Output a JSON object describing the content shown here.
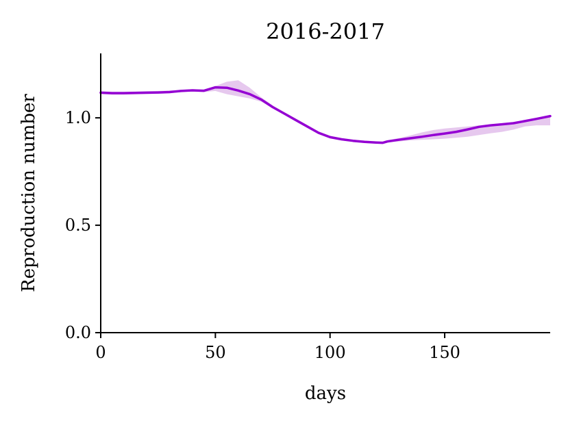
{
  "chart_data": {
    "type": "line",
    "title": "2016-2017",
    "xlabel": "days",
    "ylabel": "Reproduction number",
    "xlim": [
      0,
      196
    ],
    "ylim": [
      0.0,
      1.3
    ],
    "xticks": [
      0,
      50,
      100,
      150
    ],
    "yticks": [
      0.0,
      0.5,
      1.0
    ],
    "xtick_labels": [
      "0",
      "50",
      "100",
      "150"
    ],
    "ytick_labels": [
      "0.0",
      "0.5",
      "1.0"
    ],
    "grid": false,
    "line_color": "#9400d3",
    "band_color": "#e6c8ee",
    "series": [
      {
        "x": [
          0,
          5,
          10,
          15,
          20,
          25,
          30,
          35,
          40,
          45,
          50,
          55,
          60,
          65,
          70,
          75,
          80,
          85,
          90,
          95,
          100,
          105,
          110,
          115,
          120,
          123,
          125,
          130,
          135,
          140,
          145,
          150,
          155,
          160,
          165,
          170,
          175,
          180,
          185,
          190,
          196
        ],
        "y": [
          1.117,
          1.115,
          1.115,
          1.116,
          1.117,
          1.118,
          1.12,
          1.125,
          1.128,
          1.126,
          1.142,
          1.14,
          1.127,
          1.11,
          1.085,
          1.05,
          1.02,
          0.99,
          0.96,
          0.93,
          0.91,
          0.9,
          0.893,
          0.888,
          0.885,
          0.884,
          0.89,
          0.898,
          0.905,
          0.912,
          0.92,
          0.927,
          0.935,
          0.946,
          0.958,
          0.965,
          0.97,
          0.975,
          0.985,
          0.995,
          1.008
        ],
        "lower": [
          1.11,
          1.108,
          1.108,
          1.109,
          1.11,
          1.112,
          1.114,
          1.12,
          1.123,
          1.12,
          1.125,
          1.11,
          1.1,
          1.09,
          1.075,
          1.045,
          1.015,
          0.985,
          0.955,
          0.925,
          0.905,
          0.895,
          0.888,
          0.883,
          0.88,
          0.878,
          0.885,
          0.89,
          0.895,
          0.898,
          0.9,
          0.903,
          0.907,
          0.912,
          0.92,
          0.928,
          0.935,
          0.945,
          0.96,
          0.965,
          0.965
        ],
        "upper": [
          1.124,
          1.122,
          1.122,
          1.123,
          1.124,
          1.125,
          1.127,
          1.13,
          1.133,
          1.132,
          1.148,
          1.168,
          1.175,
          1.14,
          1.095,
          1.058,
          1.027,
          0.997,
          0.967,
          0.937,
          0.917,
          0.906,
          0.899,
          0.894,
          0.891,
          0.89,
          0.896,
          0.906,
          0.918,
          0.932,
          0.943,
          0.95,
          0.955,
          0.96,
          0.965,
          0.97,
          0.975,
          0.98,
          0.99,
          1.0,
          1.012
        ]
      }
    ]
  }
}
